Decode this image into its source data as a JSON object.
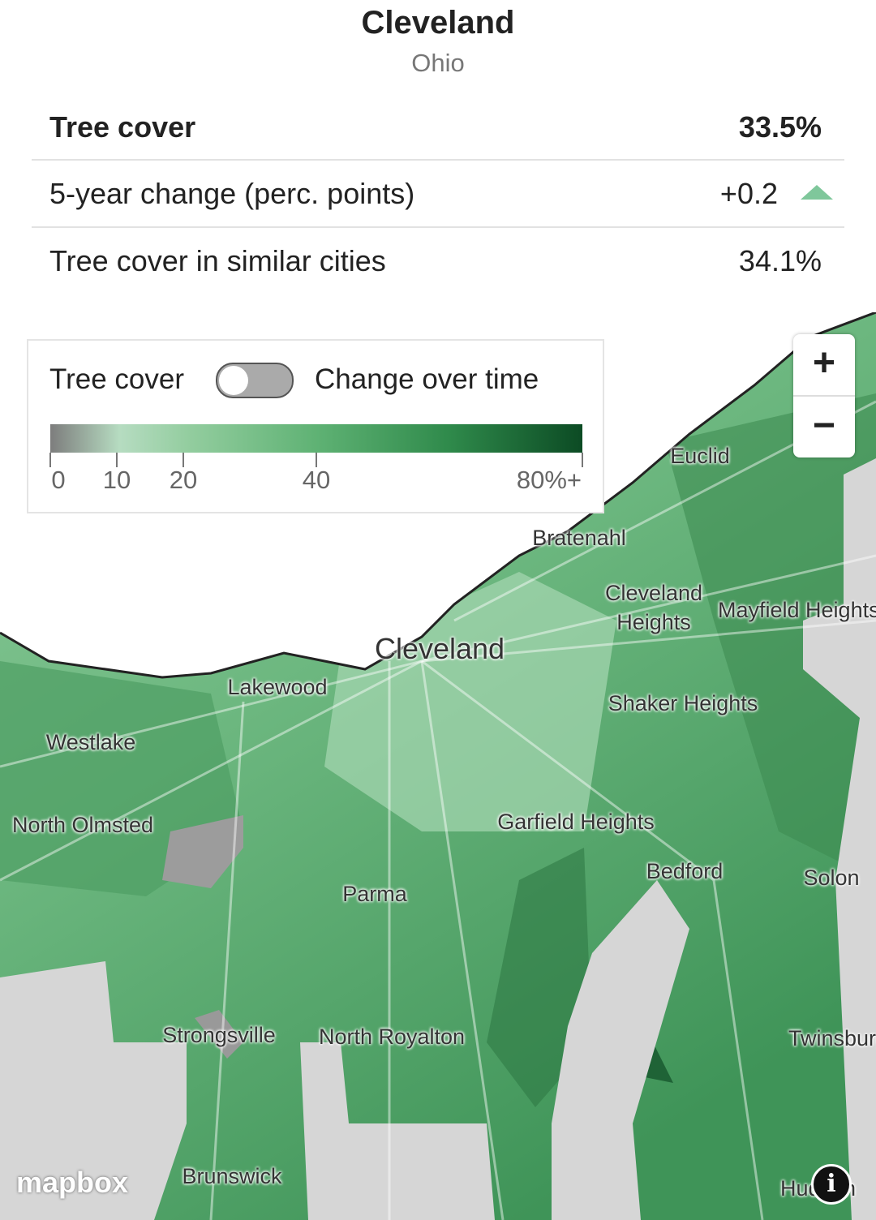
{
  "header": {
    "title": "Cleveland",
    "subtitle": "Ohio"
  },
  "stats": {
    "rows": [
      [
        "Tree cover",
        "33.5%"
      ],
      [
        "5-year change (perc. points)",
        "+0.2"
      ],
      [
        "Tree cover in similar cities",
        "34.1%"
      ]
    ]
  },
  "legend": {
    "toggle_left": "Tree cover",
    "toggle_right": "Change over time",
    "scale_max": 80,
    "ticks": [
      0,
      10,
      20,
      40,
      {
        "value": 80,
        "label": "80%+"
      }
    ]
  },
  "map": {
    "places": [
      "Euclid",
      "Bratenahl",
      "Cleveland Heights",
      "Mayfield Heights",
      "Cleveland",
      "Lakewood",
      "Shaker Heights",
      "Westlake",
      "North Olmsted",
      "Garfield Heights",
      "Bedford",
      "Solon",
      "Parma",
      "Strongsville",
      "North Royalton",
      "Twinsburg",
      "Brunswick",
      "Hudson"
    ],
    "attribution": "mapbox"
  }
}
